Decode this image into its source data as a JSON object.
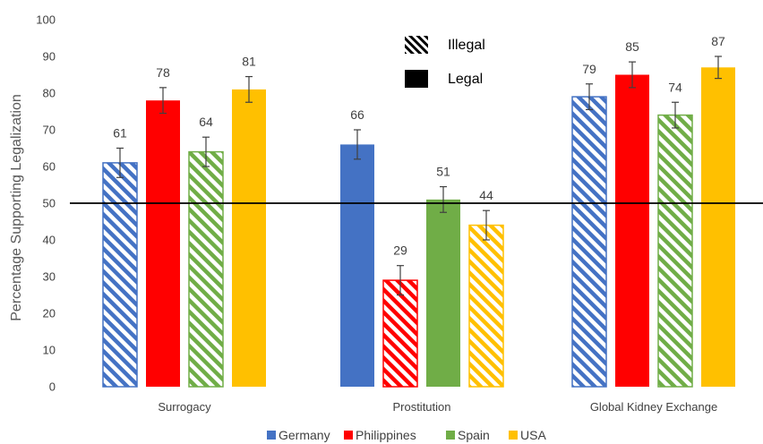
{
  "chart_data": {
    "type": "bar",
    "ylabel": "Percentage Supporting Legalization",
    "ylim": [
      0,
      100
    ],
    "yticks": [
      0,
      10,
      20,
      30,
      40,
      50,
      60,
      70,
      80,
      90,
      100
    ],
    "grid": false,
    "reference_line": 50,
    "categories": [
      "Surrogacy",
      "Prostitution",
      "Global Kidney Exchange"
    ],
    "series": [
      {
        "name": "Germany",
        "color": "#4472C4",
        "values": [
          61,
          66,
          79
        ],
        "error": [
          4,
          4,
          3.5
        ],
        "status": [
          "illegal",
          "legal",
          "illegal"
        ]
      },
      {
        "name": "Philippines",
        "color": "#FF0000",
        "values": [
          78,
          29,
          85
        ],
        "error": [
          3.5,
          4,
          3.5
        ],
        "status": [
          "legal",
          "illegal",
          "legal"
        ]
      },
      {
        "name": "Spain",
        "color": "#70AD47",
        "values": [
          64,
          51,
          74
        ],
        "error": [
          4,
          3.5,
          3.5
        ],
        "status": [
          "illegal",
          "legal",
          "illegal"
        ]
      },
      {
        "name": "USA",
        "color": "#FFC000",
        "values": [
          81,
          44,
          87
        ],
        "error": [
          3.5,
          4,
          3
        ],
        "status": [
          "legal",
          "illegal",
          "legal"
        ]
      }
    ],
    "pattern_legend": [
      {
        "label": "Illegal",
        "pattern": "illegal"
      },
      {
        "label": "Legal",
        "pattern": "legal"
      }
    ],
    "legend_position": "bottom"
  }
}
